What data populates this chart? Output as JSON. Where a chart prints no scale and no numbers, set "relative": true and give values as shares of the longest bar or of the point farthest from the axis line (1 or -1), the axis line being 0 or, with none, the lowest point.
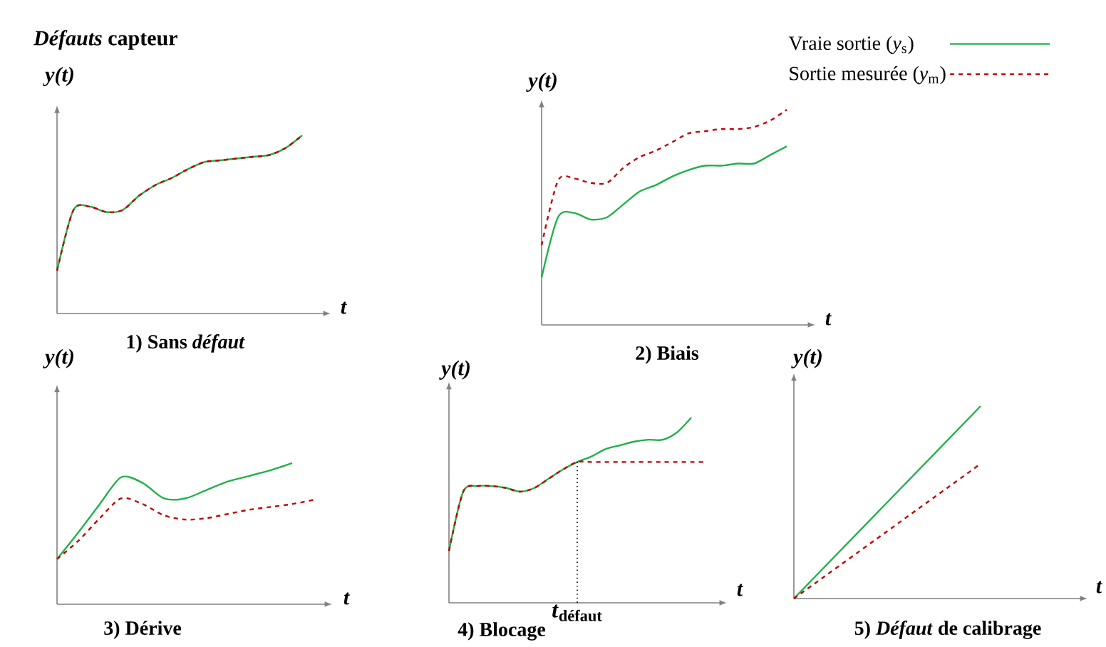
{
  "chart_data": [
    {
      "type": "line",
      "title": "1) Sans *défaut*",
      "xlabel": "t",
      "ylabel": "y(t)",
      "relative": true,
      "annotations": [
        "*Défauts* capteur"
      ],
      "categories": [
        null,
        null,
        null,
        null,
        null,
        null,
        null,
        null,
        null,
        null,
        null,
        null,
        null,
        null,
        null,
        null
      ],
      "series": [
        {
          "color": "#22b14c",
          "line_style": "solid",
          "values": [
            0.24,
            0.58,
            0.6,
            0.57,
            0.58,
            0.66,
            0.72,
            0.76,
            0.81,
            0.85,
            0.86,
            0.87,
            0.88,
            0.89,
            0.93,
            1
          ]
        },
        {
          "color": "#c00000",
          "line_style": "dashed",
          "values": [
            0.24,
            0.58,
            0.6,
            0.57,
            0.58,
            0.66,
            0.72,
            0.76,
            0.81,
            0.85,
            0.86,
            0.87,
            0.88,
            0.89,
            0.93,
            1
          ]
        }
      ]
    },
    {
      "type": "line",
      "title": "2) Biais",
      "xlabel": "t",
      "ylabel": "y(t)",
      "relative": true,
      "legend": "top right",
      "categories": [
        null,
        null,
        null,
        null,
        null,
        null,
        null,
        null,
        null,
        null,
        null,
        null,
        null,
        null,
        null,
        null
      ],
      "series": [
        {
          "name": "Vraie sortie (*y*$_{s}$)",
          "color": "#22b14c",
          "line_style": "solid",
          "values": [
            0.22,
            0.5,
            0.52,
            0.49,
            0.5,
            0.56,
            0.62,
            0.65,
            0.69,
            0.72,
            0.74,
            0.74,
            0.75,
            0.75,
            0.79,
            0.83
          ]
        },
        {
          "name": "Sortie mesurée (*y*$_{m}$)",
          "color": "#c00000",
          "line_style": "dashed",
          "values": [
            0.37,
            0.67,
            0.68,
            0.66,
            0.66,
            0.73,
            0.78,
            0.81,
            0.85,
            0.89,
            0.9,
            0.91,
            0.91,
            0.92,
            0.95,
            1
          ]
        }
      ]
    },
    {
      "type": "line",
      "title": "3) Dérive",
      "xlabel": "t",
      "ylabel": "y(t)",
      "relative": true,
      "categories": [
        null,
        null,
        null,
        null,
        null,
        null,
        null,
        null,
        null,
        null,
        null,
        null,
        null
      ],
      "series": [
        {
          "color": "#22b14c",
          "line_style": "solid",
          "values": [
            0.32,
            0.51,
            0.71,
            0.9,
            0.86,
            0.75,
            0.75,
            0.81,
            0.87,
            0.91,
            0.95,
            1,
            null
          ]
        },
        {
          "color": "#c00000",
          "line_style": "dashed",
          "values": [
            0.32,
            0.45,
            0.61,
            0.75,
            0.71,
            0.63,
            0.6,
            0.61,
            0.64,
            0.67,
            0.69,
            0.71,
            0.74
          ]
        }
      ]
    },
    {
      "type": "line",
      "title": "4) Blocage",
      "xlabel": "t",
      "ylabel": "y(t)",
      "relative": true,
      "categories": [
        null,
        null,
        null,
        null,
        null,
        null,
        null,
        null,
        null,
        null,
        null,
        null,
        null,
        null,
        null,
        null,
        null,
        null,
        null
      ],
      "annotations": [
        "*t*$_{défaut}$"
      ],
      "series": [
        {
          "color": "#22b14c",
          "line_style": "solid",
          "values": [
            0.28,
            0.6,
            0.63,
            0.63,
            0.62,
            0.6,
            0.62,
            0.67,
            0.72,
            0.76,
            0.79,
            0.83,
            0.85,
            0.87,
            0.88,
            0.88,
            0.92,
            1,
            null
          ]
        },
        {
          "color": "#c00000",
          "line_style": "dashed",
          "values": [
            0.28,
            0.6,
            0.63,
            0.63,
            0.62,
            0.6,
            0.62,
            0.67,
            0.72,
            0.76,
            0.76,
            0.76,
            0.76,
            0.76,
            0.76,
            0.76,
            0.76,
            0.76,
            0.76
          ]
        }
      ]
    },
    {
      "type": "line",
      "title": "5) *Défaut* de calibrage",
      "xlabel": "t",
      "ylabel": "y(t)",
      "relative": true,
      "categories": [
        null,
        null
      ],
      "series": [
        {
          "color": "#22b14c",
          "line_style": "solid",
          "values": [
            0,
            1
          ]
        },
        {
          "color": "#c00000",
          "line_style": "dashed",
          "values": [
            0,
            0.7
          ]
        }
      ]
    }
  ]
}
